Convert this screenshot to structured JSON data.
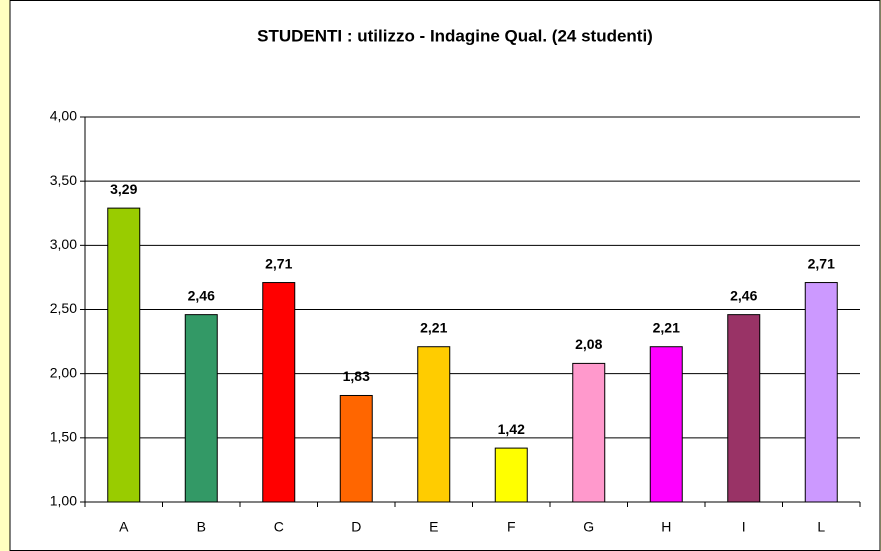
{
  "chart_data": {
    "type": "bar",
    "title": "STUDENTI : utilizzo - Indagine Qual. (24 studenti)",
    "categories": [
      "A",
      "B",
      "C",
      "D",
      "E",
      "F",
      "G",
      "H",
      "I",
      "L"
    ],
    "values": [
      3.29,
      2.46,
      2.71,
      1.83,
      2.21,
      1.42,
      2.08,
      2.21,
      2.46,
      2.71
    ],
    "value_labels": [
      "3,29",
      "2,46",
      "2,71",
      "1,83",
      "2,21",
      "1,42",
      "2,08",
      "2,21",
      "2,46",
      "2,71"
    ],
    "colors": [
      "#99cc00",
      "#339966",
      "#ff0000",
      "#ff6600",
      "#ffcc00",
      "#ffff00",
      "#ff99cc",
      "#ff00ff",
      "#993366",
      "#cc99ff"
    ],
    "ylim": [
      1,
      4
    ],
    "yticks": [
      {
        "value": 1,
        "label": "1,00"
      },
      {
        "value": 1.5,
        "label": "1,50"
      },
      {
        "value": 2,
        "label": "2,00"
      },
      {
        "value": 2.5,
        "label": "2,50"
      },
      {
        "value": 3,
        "label": "3,00"
      },
      {
        "value": 3.5,
        "label": "3,50"
      },
      {
        "value": 4,
        "label": "4,00"
      }
    ],
    "grid": true
  }
}
